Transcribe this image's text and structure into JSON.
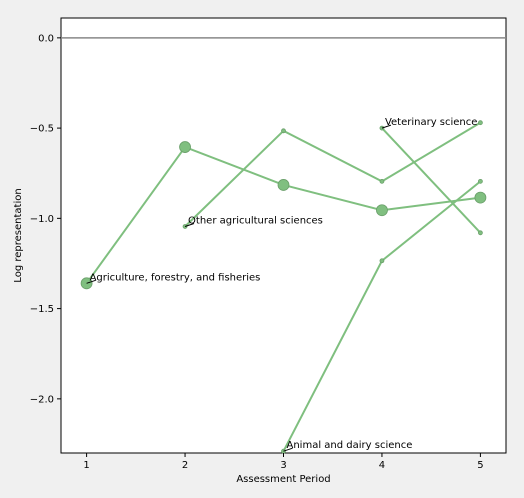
{
  "chart_data": {
    "type": "line",
    "xlabel": "Assessment Period",
    "ylabel": "Log representation",
    "xlim": [
      0.74,
      5.26
    ],
    "ylim": [
      -2.3,
      0.11
    ],
    "x_ticks": [
      1,
      2,
      3,
      4,
      5
    ],
    "y_ticks": [
      0.0,
      -0.5,
      -1.0,
      -1.5,
      -2.0
    ],
    "x_tick_labels": [
      "1",
      "2",
      "3",
      "4",
      "5"
    ],
    "y_tick_labels": [
      "0.0",
      "−0.5",
      "−1.0",
      "−1.5",
      "−2.0"
    ],
    "reference_line": 0.0,
    "series": [
      {
        "name": "Agriculture, forestry, and fisheries",
        "x": [
          1,
          2,
          3,
          4,
          5
        ],
        "y": [
          -1.36,
          -0.605,
          -0.815,
          -0.955,
          -0.885
        ],
        "marker_size": "large"
      },
      {
        "name": "Other agricultural sciences",
        "x": [
          2,
          3,
          4,
          5
        ],
        "y": [
          -1.045,
          -0.515,
          -0.795,
          -0.47
        ],
        "marker_size": "small"
      },
      {
        "name": "Animal and dairy science",
        "x": [
          3,
          4,
          5
        ],
        "y": [
          -2.29,
          -1.235,
          -0.795
        ],
        "marker_size": "small"
      },
      {
        "name": "Veterinary science",
        "x": [
          4,
          5
        ],
        "y": [
          -0.5,
          -1.08
        ],
        "marker_size": "small"
      }
    ],
    "annotations": [
      {
        "text": "Agriculture, forestry, and fisheries",
        "x": 1,
        "y": -1.36
      },
      {
        "text": "Other agricultural sciences",
        "x": 2,
        "y": -1.045
      },
      {
        "text": "Animal and dairy science",
        "x": 3,
        "y": -2.29
      },
      {
        "text": "Veterinary science",
        "x": 4,
        "y": -0.5
      }
    ],
    "colors": {
      "line": "#7fbf7f",
      "marker": "#80bf80",
      "marker_edge": "#6a9f6a",
      "reference": "#888888"
    }
  }
}
